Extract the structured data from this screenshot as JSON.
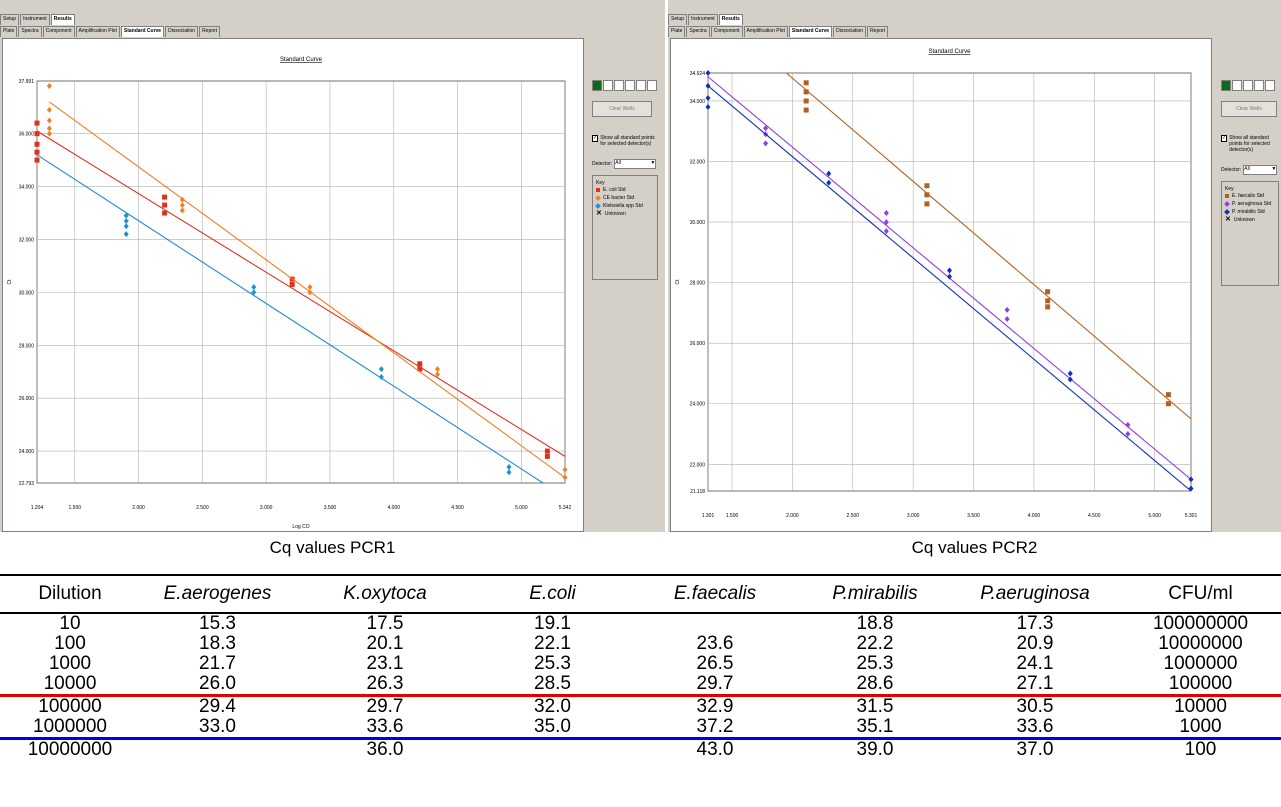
{
  "left_panel": {
    "tabs_top": [
      "Setup",
      "Instrument",
      "Results"
    ],
    "tabs_sub": [
      "Plate",
      "Spectra",
      "Component",
      "Amplification Plot",
      "Standard Curve",
      "Dissociation",
      "Report"
    ],
    "show_all_label": "Show all standard points for selected detector(s)",
    "detector_label": "Detector:",
    "detector_value": "All",
    "define_button": "Clear Wells",
    "key_title": "Key",
    "key_items": [
      "E. coli Std",
      "CE bacter Std",
      "Klebsiella spp Std",
      "Unknown"
    ]
  },
  "right_panel": {
    "tabs_top": [
      "Setup",
      "Instrument",
      "Results"
    ],
    "tabs_sub": [
      "Plate",
      "Spectra",
      "Component",
      "Amplification Plot",
      "Standard Curve",
      "Dissociation",
      "Report"
    ],
    "show_all_label": "Show all standard points for selected detector(s)",
    "detector_label": "Detector:",
    "detector_value": "All",
    "define_button": "Clear Wells",
    "key_title": "Key",
    "key_items": [
      "E. faecalis Std",
      "P. aeruginosa Std",
      "P. mirabilis Std",
      "Unknown"
    ]
  },
  "chart_data": [
    {
      "type": "scatter",
      "title": "Standard Curve",
      "xlabel": "Log CO",
      "ylabel": "Ct",
      "xlim": [
        1.204,
        5.342
      ],
      "ylim": [
        22.793,
        37.991
      ],
      "xticks": [
        "1.204",
        "1.500",
        "2.000",
        "2.500",
        "3.000",
        "3.500",
        "4.000",
        "4.500",
        "5.000",
        "5.342"
      ],
      "xtick_values": [
        1.204,
        1.5,
        2.0,
        2.5,
        3.0,
        3.5,
        4.0,
        4.5,
        5.0,
        5.342
      ],
      "yticks": [
        "22.793",
        "24.000",
        "26.000",
        "28.000",
        "30.000",
        "32.000",
        "34.000",
        "36.000",
        "37.991"
      ],
      "ytick_values": [
        22.793,
        24.0,
        26.0,
        28.0,
        30.0,
        32.0,
        34.0,
        36.0,
        37.991
      ],
      "grid": true,
      "series": [
        {
          "name": "E. coli Std",
          "color": "#e0301e",
          "marker": "square",
          "points": [
            [
              1.204,
              36.4
            ],
            [
              1.204,
              36.0
            ],
            [
              1.204,
              35.6
            ],
            [
              1.204,
              35.3
            ],
            [
              1.204,
              35.0
            ],
            [
              2.204,
              33.6
            ],
            [
              2.204,
              33.3
            ],
            [
              2.204,
              33.0
            ],
            [
              3.204,
              30.5
            ],
            [
              3.204,
              30.3
            ],
            [
              4.204,
              27.3
            ],
            [
              4.204,
              27.1
            ],
            [
              5.204,
              24.0
            ],
            [
              5.204,
              23.8
            ]
          ],
          "fit": [
            [
              1.204,
              36.1
            ],
            [
              5.342,
              23.8
            ]
          ]
        },
        {
          "name": "CE bacter Std",
          "color": "#f08020",
          "marker": "diamond",
          "points": [
            [
              1.301,
              37.8
            ],
            [
              1.301,
              36.9
            ],
            [
              1.301,
              36.5
            ],
            [
              1.301,
              36.2
            ],
            [
              1.301,
              36.0
            ],
            [
              2.343,
              33.5
            ],
            [
              2.343,
              33.3
            ],
            [
              2.343,
              33.1
            ],
            [
              3.343,
              30.2
            ],
            [
              3.343,
              30.0
            ],
            [
              4.343,
              27.1
            ],
            [
              4.343,
              26.9
            ],
            [
              5.342,
              23.3
            ],
            [
              5.342,
              23.0
            ]
          ],
          "fit": [
            [
              1.301,
              37.2
            ],
            [
              5.342,
              23.0
            ]
          ]
        },
        {
          "name": "Klebsiella spp Std",
          "color": "#2090d0",
          "marker": "diamond",
          "points": [
            [
              1.903,
              32.9
            ],
            [
              1.903,
              32.7
            ],
            [
              1.903,
              32.5
            ],
            [
              1.903,
              32.2
            ],
            [
              2.903,
              30.2
            ],
            [
              2.903,
              30.0
            ],
            [
              3.903,
              27.1
            ],
            [
              3.903,
              26.8
            ],
            [
              4.903,
              23.4
            ],
            [
              4.903,
              23.2
            ]
          ],
          "fit": [
            [
              1.204,
              35.2
            ],
            [
              5.17,
              22.793
            ]
          ]
        }
      ]
    },
    {
      "type": "scatter",
      "title": "Standard Curve",
      "xlabel": "Log CO",
      "ylabel": "Ct",
      "xlim": [
        1.301,
        5.301
      ],
      "ylim": [
        21.118,
        34.924
      ],
      "xticks": [
        "1.301",
        "1.500",
        "2.000",
        "2.500",
        "3.000",
        "3.500",
        "4.000",
        "4.500",
        "5.000",
        "5.301"
      ],
      "xtick_values": [
        1.301,
        1.5,
        2.0,
        2.5,
        3.0,
        3.5,
        4.0,
        4.5,
        5.0,
        5.301
      ],
      "yticks": [
        "21.118",
        "22.000",
        "24.000",
        "26.000",
        "28.000",
        "30.000",
        "32.000",
        "34.000",
        "34.924"
      ],
      "ytick_values": [
        21.118,
        22.0,
        24.0,
        26.0,
        28.0,
        30.0,
        32.0,
        34.0,
        34.924
      ],
      "grid": true,
      "series": [
        {
          "name": "E. faecalis Std",
          "color": "#b06020",
          "marker": "square",
          "points": [
            [
              2.114,
              34.6
            ],
            [
              2.114,
              34.3
            ],
            [
              2.114,
              34.0
            ],
            [
              2.114,
              33.7
            ],
            [
              3.114,
              31.2
            ],
            [
              3.114,
              30.9
            ],
            [
              3.114,
              30.6
            ],
            [
              4.114,
              27.7
            ],
            [
              4.114,
              27.4
            ],
            [
              4.114,
              27.2
            ],
            [
              5.114,
              24.3
            ],
            [
              5.114,
              24.0
            ]
          ],
          "fit": [
            [
              1.95,
              34.924
            ],
            [
              5.301,
              23.5
            ]
          ]
        },
        {
          "name": "P. aeruginosa Std",
          "color": "#9040e0",
          "marker": "diamond",
          "points": [
            [
              1.778,
              33.1
            ],
            [
              1.778,
              32.9
            ],
            [
              1.778,
              32.6
            ],
            [
              2.778,
              30.3
            ],
            [
              2.778,
              30.0
            ],
            [
              2.778,
              29.7
            ],
            [
              3.778,
              27.1
            ],
            [
              3.778,
              26.8
            ],
            [
              4.778,
              23.3
            ],
            [
              4.778,
              23.0
            ]
          ],
          "fit": [
            [
              1.301,
              34.8
            ],
            [
              5.301,
              21.5
            ]
          ]
        },
        {
          "name": "P. mirabilis Std",
          "color": "#1030c0",
          "marker": "diamond",
          "points": [
            [
              1.301,
              34.924
            ],
            [
              1.301,
              34.5
            ],
            [
              1.301,
              34.1
            ],
            [
              1.301,
              33.8
            ],
            [
              2.301,
              31.6
            ],
            [
              2.301,
              31.3
            ],
            [
              3.301,
              28.4
            ],
            [
              3.301,
              28.2
            ],
            [
              4.301,
              25.0
            ],
            [
              4.301,
              24.8
            ],
            [
              5.301,
              21.5
            ],
            [
              5.301,
              21.2
            ]
          ],
          "fit": [
            [
              1.301,
              34.5
            ],
            [
              5.301,
              21.118
            ]
          ]
        }
      ]
    }
  ],
  "captions": {
    "pcr1": "Cq values PCR1",
    "pcr2": "Cq values PCR2"
  },
  "table": {
    "headers": [
      "Dilution",
      "E.aerogenes",
      "K.oxytoca",
      "E.coli",
      "E.faecalis",
      "P.mirabilis",
      "P.aeruginosa",
      "CFU/ml"
    ],
    "rows": [
      [
        "10",
        "15.3",
        "17.5",
        "19.1",
        "",
        "18.8",
        "17.3",
        "100000000"
      ],
      [
        "100",
        "18.3",
        "20.1",
        "22.1",
        "23.6",
        "22.2",
        "20.9",
        "10000000"
      ],
      [
        "1000",
        "21.7",
        "23.1",
        "25.3",
        "26.5",
        "25.3",
        "24.1",
        "1000000"
      ],
      [
        "10000",
        "26.0",
        "26.3",
        "28.5",
        "29.7",
        "28.6",
        "27.1",
        "100000"
      ],
      [
        "100000",
        "29.4",
        "29.7",
        "32.0",
        "32.9",
        "31.5",
        "30.5",
        "10000"
      ],
      [
        "1000000",
        "33.0",
        "33.6",
        "35.0",
        "37.2",
        "35.1",
        "33.6",
        "1000"
      ],
      [
        "10000000",
        "",
        "36.0",
        "",
        "43.0",
        "39.0",
        "37.0",
        "100"
      ]
    ]
  }
}
